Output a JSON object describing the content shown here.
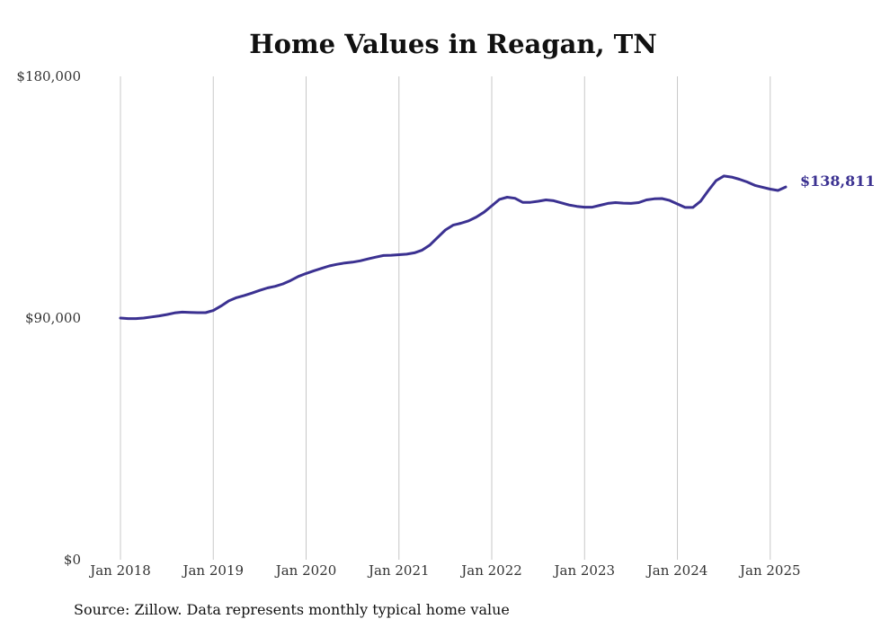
{
  "chart_data": {
    "type": "line",
    "title": "Home Values in Reagan, TN",
    "source": "Source: Zillow. Data represents monthly typical home value",
    "y_tick_labels": [
      "$0",
      "$90,000",
      "$180,000"
    ],
    "y_ticks": [
      0,
      90000,
      180000
    ],
    "ylim": [
      0,
      180000
    ],
    "x_tick_labels": [
      "Jan 2018",
      "Jan 2019",
      "Jan 2020",
      "Jan 2021",
      "Jan 2022",
      "Jan 2023",
      "Jan 2024",
      "Jan 2025"
    ],
    "x_ticks": [
      "2018-01",
      "2019-01",
      "2020-01",
      "2021-01",
      "2022-01",
      "2023-01",
      "2024-01",
      "2025-01"
    ],
    "xlim": [
      "2018-01",
      "2025-03"
    ],
    "grid": "vertical",
    "line_color": "#3b3191",
    "end_label": "$138,811",
    "series": [
      {
        "x": [
          "2018-01",
          "2018-02",
          "2018-03",
          "2018-04",
          "2018-05",
          "2018-06",
          "2018-07",
          "2018-08",
          "2018-09",
          "2018-10",
          "2018-11",
          "2018-12",
          "2019-01",
          "2019-02",
          "2019-03",
          "2019-04",
          "2019-05",
          "2019-06",
          "2019-07",
          "2019-08",
          "2019-09",
          "2019-10",
          "2019-11",
          "2019-12",
          "2020-01",
          "2020-02",
          "2020-03",
          "2020-04",
          "2020-05",
          "2020-06",
          "2020-07",
          "2020-08",
          "2020-09",
          "2020-10",
          "2020-11",
          "2020-12",
          "2021-01",
          "2021-02",
          "2021-03",
          "2021-04",
          "2021-05",
          "2021-06",
          "2021-07",
          "2021-08",
          "2021-09",
          "2021-10",
          "2021-11",
          "2021-12",
          "2022-01",
          "2022-02",
          "2022-03",
          "2022-04",
          "2022-05",
          "2022-06",
          "2022-07",
          "2022-08",
          "2022-09",
          "2022-10",
          "2022-11",
          "2022-12",
          "2023-01",
          "2023-02",
          "2023-03",
          "2023-04",
          "2023-05",
          "2023-06",
          "2023-07",
          "2023-08",
          "2023-09",
          "2023-10",
          "2023-11",
          "2023-12",
          "2024-01",
          "2024-02",
          "2024-03",
          "2024-04",
          "2024-05",
          "2024-06",
          "2024-07",
          "2024-08",
          "2024-09",
          "2024-10",
          "2024-11",
          "2024-12",
          "2025-01",
          "2025-02",
          "2025-03"
        ],
        "values": [
          90000,
          89800,
          89800,
          90000,
          90400,
          90800,
          91300,
          91900,
          92200,
          92100,
          92000,
          92000,
          92800,
          94500,
          96400,
          97600,
          98400,
          99300,
          100300,
          101200,
          101800,
          102700,
          104000,
          105500,
          106600,
          107600,
          108500,
          109400,
          110000,
          110500,
          110800,
          111300,
          112000,
          112700,
          113300,
          113400,
          113600,
          113800,
          114300,
          115300,
          117200,
          120000,
          122800,
          124600,
          125300,
          126200,
          127600,
          129400,
          131800,
          134200,
          135000,
          134600,
          133100,
          133100,
          133500,
          134000,
          133700,
          132900,
          132100,
          131600,
          131300,
          131300,
          132000,
          132700,
          133000,
          132800,
          132700,
          133000,
          134000,
          134400,
          134500,
          133800,
          132500,
          131200,
          131200,
          133500,
          137500,
          141200,
          142900,
          142500,
          141700,
          140700,
          139400,
          138700,
          138000,
          137500,
          138811
        ]
      }
    ]
  }
}
